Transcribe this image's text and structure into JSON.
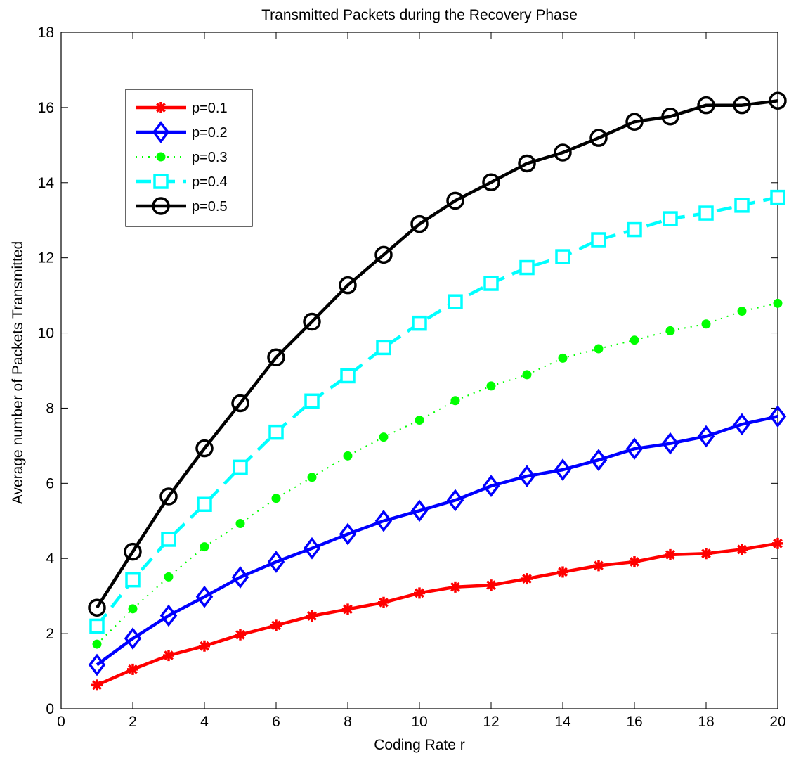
{
  "chart_data": {
    "type": "line",
    "title": "Transmitted Packets during the Recovery Phase",
    "xlabel": "Coding Rate r",
    "ylabel": "Average number of Packets Transmitted",
    "xlim": [
      0,
      20
    ],
    "ylim": [
      0,
      18
    ],
    "xticks": [
      "0",
      "2",
      "4",
      "6",
      "8",
      "10",
      "12",
      "14",
      "16",
      "18",
      "20"
    ],
    "yticks": [
      "0",
      "2",
      "4",
      "6",
      "8",
      "10",
      "12",
      "14",
      "16",
      "18"
    ],
    "grid": false,
    "legend_position": "top-left",
    "x": [
      1,
      2,
      3,
      4,
      5,
      6,
      7,
      8,
      9,
      10,
      11,
      12,
      13,
      14,
      15,
      16,
      17,
      18,
      19,
      20
    ],
    "series": [
      {
        "name": "p=0.1",
        "color": "#ff0000",
        "line_style": "solid",
        "marker": "asterisk",
        "values": [
          0.63,
          1.05,
          1.42,
          1.67,
          1.97,
          2.22,
          2.47,
          2.65,
          2.83,
          3.08,
          3.24,
          3.29,
          3.46,
          3.64,
          3.81,
          3.91,
          4.1,
          4.13,
          4.24,
          4.4
        ]
      },
      {
        "name": "p=0.2",
        "color": "#0000ff",
        "line_style": "solid",
        "marker": "diamond",
        "values": [
          1.17,
          1.87,
          2.48,
          2.98,
          3.5,
          3.91,
          4.27,
          4.65,
          5.0,
          5.27,
          5.55,
          5.93,
          6.19,
          6.36,
          6.62,
          6.92,
          7.06,
          7.25,
          7.57,
          7.78
        ]
      },
      {
        "name": "p=0.3",
        "color": "#00ff00",
        "line_style": "dotted",
        "marker": "dot",
        "values": [
          1.72,
          2.66,
          3.51,
          4.31,
          4.93,
          5.6,
          6.16,
          6.73,
          7.23,
          7.68,
          8.2,
          8.59,
          8.89,
          9.33,
          9.58,
          9.81,
          10.06,
          10.24,
          10.58,
          10.79
        ]
      },
      {
        "name": "p=0.4",
        "color": "#00ffff",
        "line_style": "dashed",
        "marker": "square",
        "values": [
          2.2,
          3.43,
          4.51,
          5.44,
          6.43,
          7.36,
          8.19,
          8.86,
          9.61,
          10.26,
          10.83,
          11.32,
          11.74,
          12.03,
          12.48,
          12.75,
          13.04,
          13.19,
          13.4,
          13.61
        ]
      },
      {
        "name": "p=0.5",
        "color": "#000000",
        "line_style": "solid",
        "marker": "circle",
        "values": [
          2.69,
          4.18,
          5.65,
          6.93,
          8.13,
          9.35,
          10.3,
          11.27,
          12.08,
          12.9,
          13.52,
          14.01,
          14.51,
          14.8,
          15.19,
          15.62,
          15.76,
          16.06,
          16.06,
          16.18
        ]
      }
    ]
  }
}
